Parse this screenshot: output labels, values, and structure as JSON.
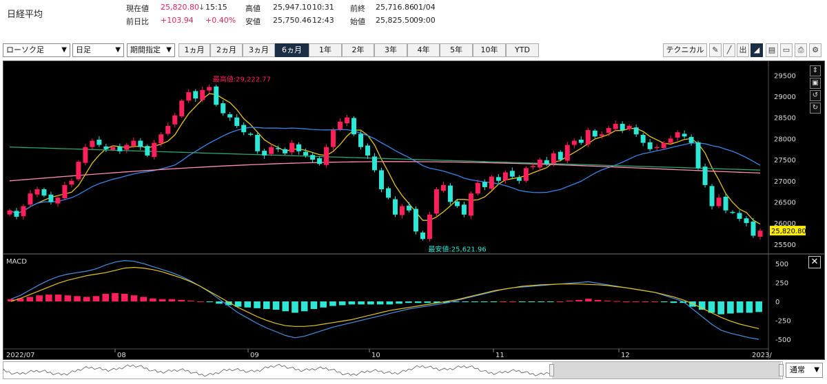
{
  "header": {
    "title": "日経平均",
    "current_label": "現在値",
    "current_value": "25,820.80",
    "current_arrow": "↓",
    "current_time": "15:15",
    "change_label": "前日比",
    "change_value": "+103.94",
    "change_pct": "+0.40%",
    "high_label": "高値",
    "high_value": "25,947.10",
    "high_time": "10:31",
    "low_label": "安値",
    "low_value": "25,750.46",
    "low_time": "12:43",
    "prev_label": "前終",
    "prev_value": "25,716.86",
    "prev_date": "01/04",
    "open_label": "始値",
    "open_value": "25,825.50",
    "open_time": "09:00"
  },
  "toolbar": {
    "chart_type": "ローソク足",
    "interval": "日足",
    "period_select": "期間指定",
    "periods": [
      "1ヵ月",
      "2ヵ月",
      "3ヵ月",
      "6ヵ月",
      "1年",
      "2年",
      "3年",
      "4年",
      "5年",
      "10年",
      "YTD"
    ],
    "active_period": "6ヵ月",
    "technical_label": "テクニカル",
    "icons": [
      "pencil-icon",
      "line-draw-icon",
      "volume-icon",
      "area-chart-icon",
      "save-icon",
      "folder-icon",
      "print-icon",
      "settings-icon"
    ]
  },
  "chart": {
    "price_ticks": [
      "29500",
      "29000",
      "28500",
      "28000",
      "27500",
      "27000",
      "26500",
      "26000",
      "25500"
    ],
    "current_price_tag": "25,820.80",
    "max_label": "最高値:29,222.77",
    "min_label": "最安値:25,621.96",
    "macd_label": "MACD",
    "macd_ticks": [
      "500",
      "250",
      "0",
      "-250",
      "-500"
    ],
    "x_labels": [
      "2022/07",
      "08",
      "09",
      "10",
      "11",
      "12",
      "2023/"
    ],
    "colors": {
      "up": "#ff1f5a",
      "down": "#2ee6d6",
      "ma_short": "#e6c619",
      "ma_mid": "#3a86e8",
      "ma_long1": "#ff8fb0",
      "ma_long2": "#2aa86e",
      "macd": "#4a90e2",
      "signal": "#e6c619"
    }
  },
  "chart_data": {
    "type": "candlestick",
    "title": "日経平均",
    "x_range": [
      "2022/07",
      "2023/01"
    ],
    "ylim": [
      25350,
      29750
    ],
    "close_series": [
      26300,
      26150,
      26400,
      26700,
      26800,
      26650,
      26500,
      26600,
      26900,
      27000,
      27450,
      27800,
      27950,
      27850,
      27750,
      27800,
      27700,
      27850,
      27950,
      27800,
      27600,
      27900,
      28100,
      28300,
      28550,
      28900,
      29100,
      28950,
      29150,
      29222,
      28800,
      28600,
      28500,
      28300,
      28150,
      28100,
      27700,
      27600,
      27800,
      27750,
      27650,
      27900,
      27700,
      27600,
      27500,
      27400,
      27800,
      28200,
      28400,
      28500,
      28100,
      27800,
      27600,
      27250,
      26800,
      26600,
      26200,
      26400,
      26300,
      25800,
      25622,
      26200,
      26800,
      26900,
      26500,
      26400,
      26200,
      26700,
      26950,
      26850,
      27100,
      27000,
      27200,
      27100,
      27000,
      27300,
      27350,
      27500,
      27400,
      27650,
      27500,
      27850,
      27950,
      27900,
      28200,
      28050,
      28100,
      28250,
      28350,
      28200,
      28300,
      28100,
      27900,
      27750,
      27800,
      27900,
      28000,
      28150,
      28050,
      27900,
      27300,
      26900,
      26400,
      26600,
      26300,
      26250,
      26100,
      26000,
      25700,
      25820
    ],
    "series": [
      {
        "name": "MACD",
        "values": [
          30,
          80,
          150,
          220,
          280,
          330,
          360,
          380,
          400,
          430,
          480,
          520,
          540,
          530,
          500,
          460,
          420,
          380,
          330,
          270,
          200,
          120,
          30,
          -60,
          -150,
          -220,
          -290,
          -350,
          -400,
          -450,
          -480,
          -460,
          -420,
          -380,
          -340,
          -310,
          -280,
          -250,
          -220,
          -190,
          -160,
          -130,
          -100,
          -80,
          -60,
          -40,
          -20,
          10,
          40,
          70,
          100,
          130,
          160,
          180,
          190,
          200,
          210,
          220,
          230,
          240,
          250,
          260,
          240,
          220,
          200,
          180,
          160,
          140,
          120,
          80,
          40,
          0,
          -100,
          -200,
          -300,
          -380,
          -420,
          -450,
          -480,
          -500
        ]
      },
      {
        "name": "Signal",
        "values": [
          0,
          40,
          90,
          140,
          190,
          240,
          280,
          310,
          340,
          360,
          380,
          410,
          440,
          450,
          440,
          420,
          390,
          350,
          310,
          260,
          200,
          130,
          60,
          -10,
          -80,
          -140,
          -200,
          -250,
          -290,
          -320,
          -330,
          -330,
          -320,
          -300,
          -280,
          -260,
          -240,
          -210,
          -180,
          -150,
          -120,
          -100,
          -80,
          -60,
          -40,
          -20,
          0,
          20,
          50,
          80,
          110,
          140,
          160,
          180,
          200,
          210,
          220,
          225,
          230,
          230,
          230,
          225,
          220,
          210,
          195,
          180,
          160,
          140,
          120,
          90,
          60,
          20,
          -30,
          -90,
          -150,
          -210,
          -260,
          -300,
          -330,
          -360
        ]
      }
    ],
    "macd_ylim": [
      -600,
      600
    ]
  },
  "navigator": {
    "mode": "通常"
  }
}
